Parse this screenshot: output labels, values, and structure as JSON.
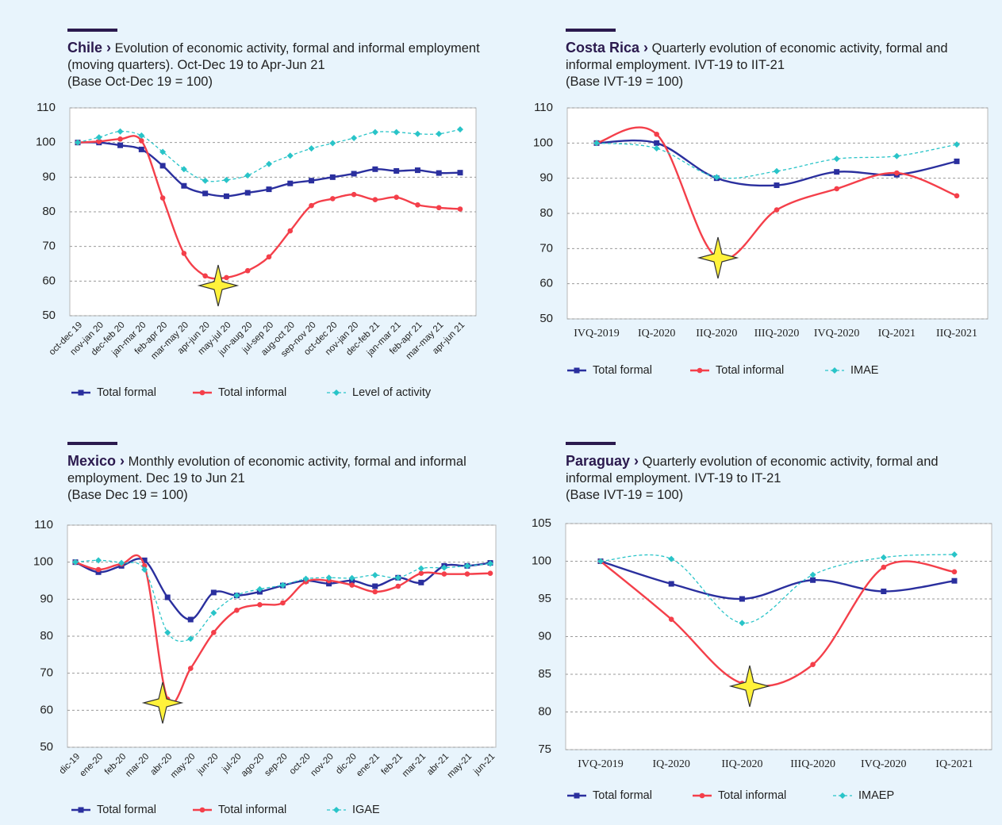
{
  "chart_data": [
    {
      "type": "line",
      "country": "Chile ›",
      "title": "Evolution of economic activity, formal and informal employment (moving quarters). Oct-Dec 19 to Apr-Jun 21",
      "subtitle": "(Base Oct-Dec 19 = 100)",
      "categories": [
        "oct-dec 19",
        "nov-jan 20",
        "dec-feb 20",
        "jan-mar 20",
        "feb-apr 20",
        "mar-may 20",
        "apr-jun 20",
        "may-jul 20",
        "jun-aug 20",
        "jul-sep 20",
        "aug-oct 20",
        "sep-nov 20",
        "oct-dec 20",
        "nov-jan 20",
        "dec-feb 21",
        "jan-mar 21",
        "feb-apr 21",
        "mar-may 21",
        "apr-jun 21"
      ],
      "series": [
        {
          "name": "Total formal",
          "color": "#2a2f9e",
          "marker": "square",
          "values": [
            100,
            100,
            99.2,
            98,
            93.3,
            87.5,
            85.3,
            84.5,
            85.5,
            86.5,
            88.2,
            89,
            90,
            91,
            92.3,
            91.8,
            92,
            91.2,
            91.3
          ]
        },
        {
          "name": "Total informal",
          "color": "#f43f4a",
          "marker": "circle",
          "values": [
            100,
            100.3,
            101,
            100.5,
            84,
            68,
            61.5,
            61,
            63,
            67,
            74.5,
            81.8,
            83.8,
            85,
            83.5,
            84.2,
            82,
            81.2,
            80.8
          ]
        },
        {
          "name": "Level of activity",
          "color": "#29c4c8",
          "marker": "diamond",
          "dashed": true,
          "values": [
            100,
            101.5,
            103.2,
            102,
            97.3,
            92.3,
            89,
            89.2,
            90.5,
            93.8,
            96.2,
            98.3,
            99.8,
            101.3,
            103,
            103,
            102.5,
            102.5,
            103.8
          ]
        }
      ],
      "ylim": [
        50,
        110
      ],
      "yticks": [
        50,
        60,
        70,
        80,
        90,
        100,
        110
      ],
      "grid": true
    },
    {
      "type": "line",
      "country": "Costa Rica ›",
      "title": "Quarterly evolution of economic activity, formal and informal employment. IVT-19 to IIT-21",
      "subtitle": "(Base IVT-19 = 100)",
      "categories": [
        "IVQ-2019",
        "IQ-2020",
        "IIQ-2020",
        "IIIQ-2020",
        "IVQ-2020",
        "IQ-2021",
        "IIQ-2021"
      ],
      "series": [
        {
          "name": "Total formal",
          "color": "#2a2f9e",
          "marker": "square",
          "values": [
            100,
            100,
            90,
            88,
            91.8,
            91,
            94.8
          ]
        },
        {
          "name": "Total informal",
          "color": "#f43f4a",
          "marker": "circle",
          "values": [
            100,
            102.5,
            67.5,
            81,
            87,
            91.5,
            85
          ]
        },
        {
          "name": "IMAE",
          "color": "#29c4c8",
          "marker": "diamond",
          "dashed": true,
          "values": [
            100,
            98.5,
            90.3,
            92,
            95.5,
            96.3,
            99.6
          ]
        }
      ],
      "ylim": [
        50,
        110
      ],
      "yticks": [
        50,
        60,
        70,
        80,
        90,
        100,
        110
      ],
      "grid": true
    },
    {
      "type": "line",
      "country": "Mexico ›",
      "title": "Monthly evolution of economic activity, formal and informal employment. Dec 19 to Jun 21",
      "subtitle": "(Base Dec 19 = 100)",
      "categories": [
        "dic-19",
        "ene-20",
        "feb-20",
        "mar-20",
        "abr-20",
        "may-20",
        "jun-20",
        "jul-20",
        "ago-20",
        "sep-20",
        "oct-20",
        "nov-20",
        "dic-20",
        "ene-21",
        "feb-21",
        "mar-21",
        "abr-21",
        "may-21",
        "jun-21"
      ],
      "series": [
        {
          "name": "Total formal",
          "color": "#2a2f9e",
          "marker": "square",
          "values": [
            100,
            97.3,
            99,
            100.5,
            90.5,
            84.5,
            91.8,
            91,
            92,
            93.7,
            95,
            94.2,
            95,
            93.5,
            95.8,
            94.5,
            99,
            99,
            99.8
          ]
        },
        {
          "name": "Total informal",
          "color": "#f43f4a",
          "marker": "circle",
          "values": [
            100,
            98,
            99.5,
            99,
            63,
            71.3,
            81,
            87,
            88.5,
            89,
            94.7,
            95,
            93.8,
            92,
            93.5,
            97,
            96.8,
            96.8,
            97
          ]
        },
        {
          "name": "IGAE",
          "color": "#29c4c8",
          "marker": "diamond",
          "dashed": true,
          "values": [
            100,
            100.5,
            99.8,
            98,
            81,
            79.3,
            86.3,
            91,
            92.7,
            93.8,
            95.5,
            95.8,
            95.7,
            96.5,
            95.8,
            98.3,
            98.5,
            99,
            99.6
          ]
        }
      ],
      "ylim": [
        50,
        110
      ],
      "yticks": [
        50,
        60,
        70,
        80,
        90,
        100,
        110
      ],
      "grid": true
    },
    {
      "type": "line",
      "country": "Paraguay ›",
      "title": "Quarterly evolution of economic activity, formal and informal employment. IVT-19 to IT-21",
      "subtitle": "(Base IVT-19 = 100)",
      "categories": [
        "IVQ-2019",
        "IQ-2020",
        "IIQ-2020",
        "IIIQ-2020",
        "IVQ-2020",
        "IQ-2021"
      ],
      "series": [
        {
          "name": "Total formal",
          "color": "#2a2f9e",
          "marker": "square",
          "values": [
            100,
            97,
            95,
            97.5,
            96,
            97.4
          ]
        },
        {
          "name": "Total informal",
          "color": "#f43f4a",
          "marker": "circle",
          "values": [
            100,
            92.3,
            83.8,
            86.3,
            99.2,
            98.6
          ]
        },
        {
          "name": "IMAEP",
          "color": "#29c4c8",
          "marker": "diamond",
          "dashed": true,
          "values": [
            100,
            100.3,
            91.8,
            98.2,
            100.5,
            100.9
          ]
        }
      ],
      "ylim": [
        75,
        105
      ],
      "yticks": [
        75,
        80,
        85,
        90,
        95,
        100,
        105
      ],
      "grid": true
    }
  ]
}
